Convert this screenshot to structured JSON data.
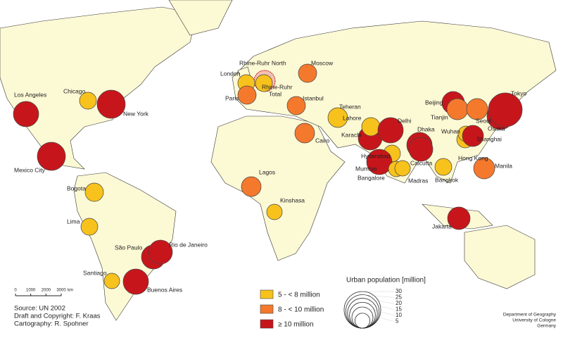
{
  "classes": [
    {
      "label": "5 - < 8 million",
      "color": "#f8c21c"
    },
    {
      "label": "8 - < 10 million",
      "color": "#f5792c"
    },
    {
      "label": "≥ 10 million",
      "color": "#c7161b"
    }
  ],
  "cities": [
    {
      "name": "Los Angeles",
      "class": 2
    },
    {
      "name": "Chicago",
      "class": 0
    },
    {
      "name": "New York",
      "class": 2
    },
    {
      "name": "Mexico City",
      "class": 2
    },
    {
      "name": "Bogota",
      "class": 0
    },
    {
      "name": "Lima",
      "class": 0
    },
    {
      "name": "São Paulo",
      "class": 2
    },
    {
      "name": "Rio de Janeiro",
      "class": 2
    },
    {
      "name": "Santiago",
      "class": 0
    },
    {
      "name": "Buenos Aires",
      "class": 2
    },
    {
      "name": "London",
      "class": 0
    },
    {
      "name": "Paris",
      "class": 1
    },
    {
      "name": "Rhine-Ruhr North",
      "class": 0
    },
    {
      "name": "Moscow",
      "class": 1
    },
    {
      "name": "Istanbul",
      "class": 1
    },
    {
      "name": "Cairo",
      "class": 1
    },
    {
      "name": "Teheran",
      "class": 0
    },
    {
      "name": "Lagos",
      "class": 1
    },
    {
      "name": "Kinshasa",
      "class": 0
    },
    {
      "name": "Karachi",
      "class": 2
    },
    {
      "name": "Lahore",
      "class": 0
    },
    {
      "name": "Delhi",
      "class": 2
    },
    {
      "name": "Dhaka",
      "class": 2
    },
    {
      "name": "Calcutta",
      "class": 2
    },
    {
      "name": "Hyderabad",
      "class": 0
    },
    {
      "name": "Mumbai",
      "class": 2
    },
    {
      "name": "Bangalore",
      "class": 0
    },
    {
      "name": "Madras",
      "class": 0
    },
    {
      "name": "Bangkok",
      "class": 0
    },
    {
      "name": "Hong Kong",
      "class": 0
    },
    {
      "name": "Wuhan",
      "class": 0
    },
    {
      "name": "Beijing",
      "class": 2
    },
    {
      "name": "Tianjin",
      "class": 1
    },
    {
      "name": "Seoul",
      "class": 1
    },
    {
      "name": "Shanghai",
      "class": 2
    },
    {
      "name": "Osaka",
      "class": 2
    },
    {
      "name": "Tokyo",
      "class": 2
    },
    {
      "name": "Manila",
      "class": 1
    },
    {
      "name": "Jakarta",
      "class": 2
    }
  ],
  "rhine_ruhr_total": [
    "Rhine-Ruhr",
    "Total"
  ],
  "size_legend": {
    "title": "Urban population [million]",
    "ticks": [
      30,
      25,
      20,
      15,
      10,
      5
    ]
  },
  "scale_bar": {
    "ticks": [
      0,
      1000,
      2000,
      3000
    ],
    "unit": "km"
  },
  "source": [
    "Source: UN 2002",
    "Draft and Copyright: F. Kraas",
    "Cartography: R. Spohner"
  ],
  "department": [
    "Department of Geography",
    "University of Cologne",
    "Germany"
  ]
}
